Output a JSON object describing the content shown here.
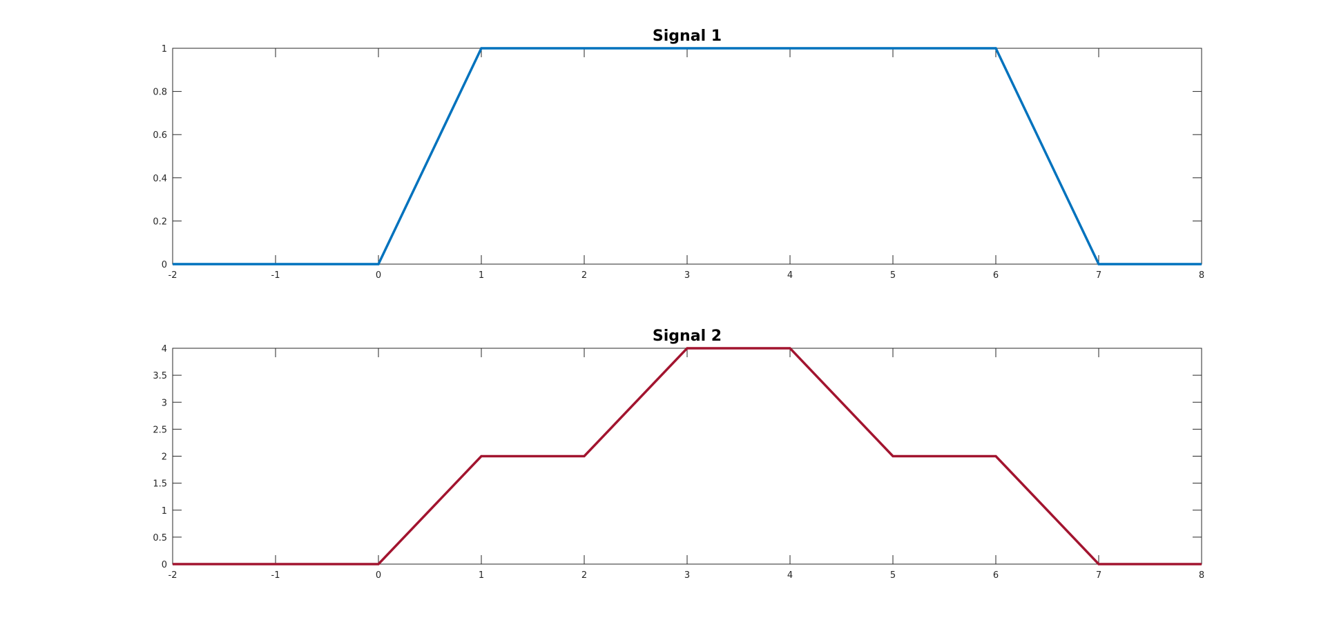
{
  "chart_data": [
    {
      "type": "line",
      "title": "Signal 1",
      "xlabel": "",
      "ylabel": "",
      "xlim": [
        -2,
        8
      ],
      "ylim": [
        0,
        1
      ],
      "xticks": [
        -2,
        -1,
        0,
        1,
        2,
        3,
        4,
        5,
        6,
        7,
        8
      ],
      "yticks": [
        0,
        0.2,
        0.4,
        0.6,
        0.8,
        1
      ],
      "grid": false,
      "series": [
        {
          "color": "#0072BD",
          "x": [
            -2,
            0,
            1,
            6,
            7,
            8
          ],
          "y": [
            0,
            0,
            1,
            1,
            0,
            0
          ]
        }
      ]
    },
    {
      "type": "line",
      "title": "Signal 2",
      "xlabel": "",
      "ylabel": "",
      "xlim": [
        -2,
        8
      ],
      "ylim": [
        0,
        4
      ],
      "xticks": [
        -2,
        -1,
        0,
        1,
        2,
        3,
        4,
        5,
        6,
        7,
        8
      ],
      "yticks": [
        0,
        0.5,
        1,
        1.5,
        2,
        2.5,
        3,
        3.5,
        4
      ],
      "grid": false,
      "series": [
        {
          "color": "#A2142F",
          "x": [
            -2,
            0,
            1,
            2,
            3,
            4,
            5,
            6,
            7,
            8
          ],
          "y": [
            0,
            0,
            2,
            2,
            4,
            4,
            2,
            2,
            0,
            0
          ]
        }
      ]
    }
  ]
}
